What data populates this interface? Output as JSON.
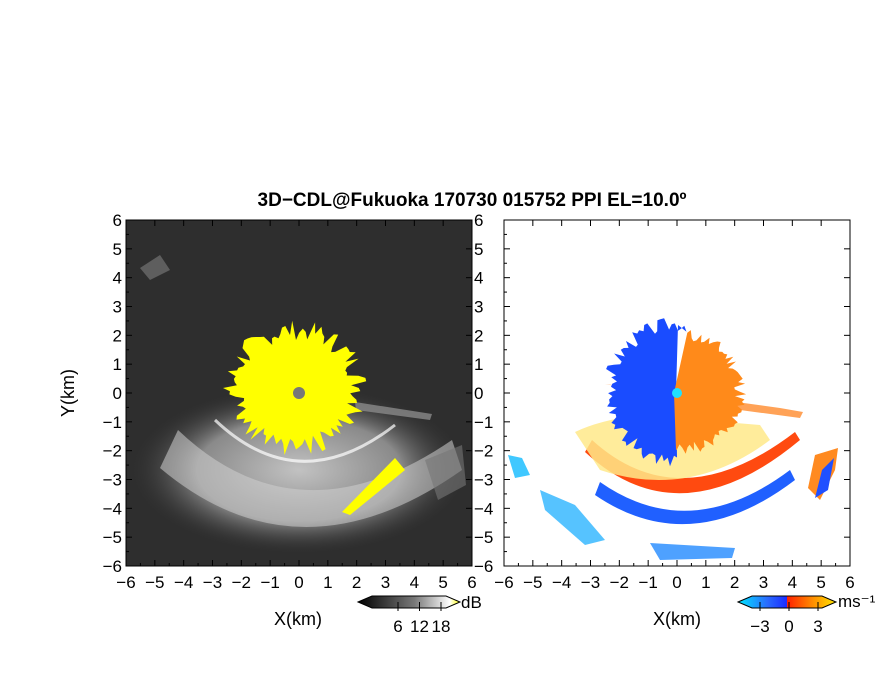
{
  "title": "3D−CDL@Fukuoka 170730 015752 PPI EL=10.0º",
  "chart_data": [
    {
      "type": "heatmap",
      "panel": "snr",
      "xlabel": "X(km)",
      "ylabel": "Y(km)",
      "xlim": [
        -6,
        6
      ],
      "ylim": [
        -6,
        6
      ],
      "xticks": [
        "−6",
        "−5",
        "−4",
        "−3",
        "−2",
        "−1",
        "0",
        "1",
        "2",
        "3",
        "4",
        "5",
        "6"
      ],
      "yticks": [
        "6",
        "5",
        "4",
        "3",
        "2",
        "1",
        "0",
        "−1",
        "−2",
        "−3",
        "−4",
        "−5",
        "−6"
      ],
      "colorbar": {
        "unit": "dB",
        "ticks": [
          "6",
          "12",
          "18"
        ],
        "colors": [
          "#000000",
          "#555555",
          "#aaaaaa",
          "#ffffff",
          "#ffff00"
        ]
      },
      "saturated_color": "#ffff00",
      "background_color": "#2e2e2e"
    },
    {
      "type": "heatmap",
      "panel": "doppler_velocity",
      "xlabel": "X(km)",
      "xlim": [
        -6,
        6
      ],
      "ylim": [
        -6,
        6
      ],
      "xticks": [
        "−6",
        "−5",
        "−4",
        "−3",
        "−2",
        "−1",
        "0",
        "1",
        "2",
        "3",
        "4",
        "5",
        "6"
      ],
      "yticks": [
        "6",
        "5",
        "4",
        "3",
        "2",
        "1",
        "0",
        "−1",
        "−2",
        "−3",
        "−4",
        "−5",
        "−6"
      ],
      "colorbar": {
        "unit": "ms⁻¹",
        "ticks": [
          "−3",
          "0",
          "3"
        ],
        "colors": [
          "#00e0ff",
          "#0060ff",
          "#ff2000",
          "#ff8000",
          "#ffe000"
        ]
      },
      "approaching_color": "#1a4cff",
      "receding_color": "#ff8a1a"
    }
  ]
}
